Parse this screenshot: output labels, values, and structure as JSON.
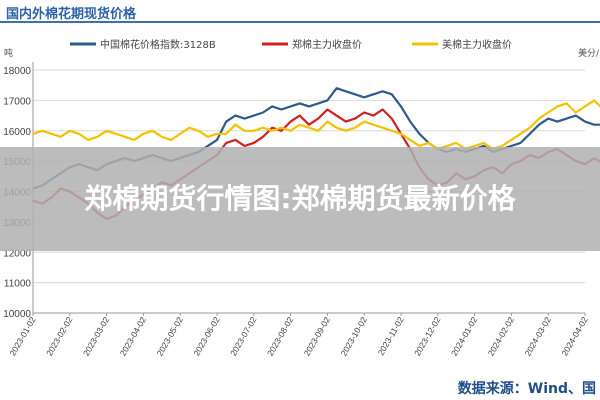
{
  "page": {
    "overlay_text": "郑棉期货行情图:郑棉期货最新价格",
    "source_text": "数据来源：Wind、国"
  },
  "chart_data": {
    "type": "line",
    "title": "国内外棉花期现货价格",
    "left_axis_unit": "吨",
    "right_axis_unit": "美分/",
    "y_ticks_left": [
      "18000",
      "17000",
      "16000",
      "15000",
      "14000",
      "13000",
      "12000",
      "11000",
      "10000"
    ],
    "y_left_range": [
      10000,
      18000
    ],
    "x_ticks": [
      "2023-01-02",
      "2023-02-02",
      "2023-03-02",
      "2023-04-02",
      "2023-05-02",
      "2023-06-02",
      "2023-07-02",
      "2023-08-02",
      "2023-09-02",
      "2023-10-02",
      "2023-11-02",
      "2023-12-02",
      "2024-01-02",
      "2024-02-02",
      "2024-03-02",
      "2024-04-02"
    ],
    "legend_position": "top",
    "series": [
      {
        "name": "中国棉花价格指数:3128B",
        "color": "#2e5a8c",
        "x": [
          0,
          0.25,
          0.5,
          0.75,
          1,
          1.25,
          1.5,
          1.75,
          2,
          2.25,
          2.5,
          2.75,
          3,
          3.25,
          3.5,
          3.75,
          4,
          4.25,
          4.5,
          4.75,
          5,
          5.25,
          5.5,
          5.75,
          6,
          6.25,
          6.5,
          6.75,
          7,
          7.25,
          7.5,
          7.75,
          8,
          8.25,
          8.5,
          8.75,
          9,
          9.25,
          9.5,
          9.75,
          10,
          10.25,
          10.5,
          10.75,
          11,
          11.25,
          11.5,
          11.75,
          12,
          12.25,
          12.5,
          12.75,
          13,
          13.25,
          13.5,
          13.75,
          14,
          14.25,
          14.5,
          14.75,
          15,
          15.25,
          15.5
        ],
        "values": [
          14.1,
          14.2,
          14.4,
          14.6,
          14.8,
          14.9,
          14.8,
          14.7,
          14.9,
          15.0,
          15.1,
          15.0,
          15.1,
          15.2,
          15.1,
          15.0,
          15.1,
          15.2,
          15.3,
          15.5,
          15.7,
          16.3,
          16.5,
          16.4,
          16.5,
          16.6,
          16.8,
          16.7,
          16.8,
          16.9,
          16.8,
          16.9,
          17.0,
          17.4,
          17.3,
          17.2,
          17.1,
          17.2,
          17.3,
          17.2,
          16.8,
          16.3,
          15.9,
          15.6,
          15.4,
          15.3,
          15.4,
          15.3,
          15.4,
          15.5,
          15.3,
          15.4,
          15.5,
          15.6,
          15.9,
          16.2,
          16.4,
          16.3,
          16.4,
          16.5,
          16.3,
          16.2,
          16.2
        ]
      },
      {
        "name": "郑棉主力收盘价",
        "color": "#cc2222",
        "x": [
          0,
          0.25,
          0.5,
          0.75,
          1,
          1.25,
          1.5,
          1.75,
          2,
          2.25,
          2.5,
          2.75,
          3,
          3.25,
          3.5,
          3.75,
          4,
          4.25,
          4.5,
          4.75,
          5,
          5.25,
          5.5,
          5.75,
          6,
          6.25,
          6.5,
          6.75,
          7,
          7.25,
          7.5,
          7.75,
          8,
          8.25,
          8.5,
          8.75,
          9,
          9.25,
          9.5,
          9.75,
          10,
          10.25,
          10.5,
          10.75,
          11,
          11.25,
          11.5,
          11.75,
          12,
          12.25,
          12.5,
          12.75,
          13,
          13.25,
          13.5,
          13.75,
          14,
          14.25,
          14.5,
          14.75,
          15,
          15.25,
          15.5
        ],
        "values": [
          13.7,
          13.6,
          13.8,
          14.1,
          14.0,
          13.8,
          13.6,
          13.3,
          13.1,
          13.2,
          13.5,
          13.7,
          13.9,
          14.1,
          14.3,
          14.2,
          14.4,
          14.6,
          14.8,
          15.0,
          15.2,
          15.6,
          15.7,
          15.5,
          15.6,
          15.8,
          16.1,
          16.0,
          16.3,
          16.5,
          16.2,
          16.4,
          16.7,
          16.5,
          16.3,
          16.4,
          16.6,
          16.5,
          16.7,
          16.4,
          15.9,
          15.4,
          14.8,
          14.4,
          14.2,
          14.3,
          14.6,
          14.4,
          14.5,
          14.7,
          14.8,
          14.6,
          14.9,
          15.0,
          15.2,
          15.1,
          15.3,
          15.4,
          15.2,
          15.0,
          14.9,
          15.1,
          14.9
        ]
      },
      {
        "name": "美棉主力收盘价",
        "color": "#f2c200",
        "x": [
          0,
          0.25,
          0.5,
          0.75,
          1,
          1.25,
          1.5,
          1.75,
          2,
          2.25,
          2.5,
          2.75,
          3,
          3.25,
          3.5,
          3.75,
          4,
          4.25,
          4.5,
          4.75,
          5,
          5.25,
          5.5,
          5.75,
          6,
          6.25,
          6.5,
          6.75,
          7,
          7.25,
          7.5,
          7.75,
          8,
          8.25,
          8.5,
          8.75,
          9,
          9.25,
          9.5,
          9.75,
          10,
          10.25,
          10.5,
          10.75,
          11,
          11.25,
          11.5,
          11.75,
          12,
          12.25,
          12.5,
          12.75,
          13,
          13.25,
          13.5,
          13.75,
          14,
          14.25,
          14.5,
          14.75,
          15,
          15.25,
          15.5
        ],
        "values": [
          15.9,
          16.0,
          15.9,
          15.8,
          16.0,
          15.9,
          15.7,
          15.8,
          16.0,
          15.9,
          15.8,
          15.7,
          15.9,
          16.0,
          15.8,
          15.7,
          15.9,
          16.1,
          16.0,
          15.8,
          15.9,
          15.9,
          16.2,
          16.0,
          16.0,
          16.1,
          16.0,
          16.1,
          16.0,
          16.2,
          16.1,
          16.0,
          16.3,
          16.1,
          16.0,
          16.1,
          16.3,
          16.2,
          16.1,
          16.0,
          15.9,
          15.7,
          15.5,
          15.6,
          15.4,
          15.5,
          15.6,
          15.4,
          15.5,
          15.6,
          15.4,
          15.5,
          15.7,
          15.9,
          16.1,
          16.4,
          16.6,
          16.8,
          16.9,
          16.6,
          16.8,
          17.0,
          16.7
        ]
      }
    ]
  }
}
